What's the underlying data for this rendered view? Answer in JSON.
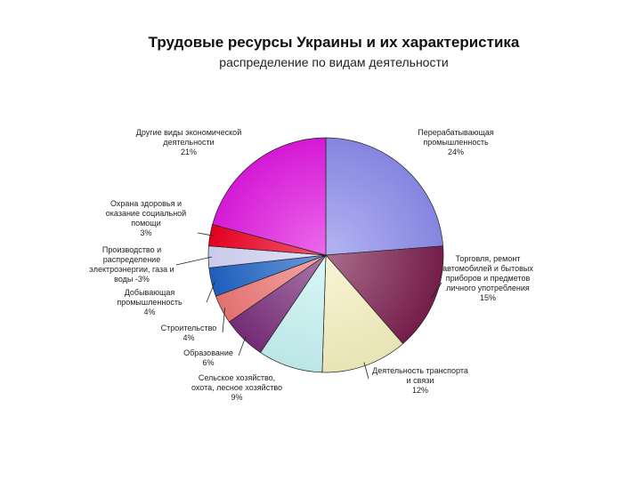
{
  "page": {
    "title": "Трудовые ресурсы Украины и их характеристика",
    "subtitle": "распределение по видам деятельности"
  },
  "chart_data": {
    "type": "pie",
    "title": "Трудовые ресурсы Украины и их характеристика",
    "subtitle": "распределение по видам деятельности",
    "unit": "%",
    "slices": [
      {
        "label": "Перерабатывающая промышленность",
        "value": 24,
        "value_label": "24%",
        "color": "#8c8cec",
        "lines": [
          "Перерабатывающая",
          "промышленность",
          "24%"
        ]
      },
      {
        "label": "Торговля, ремонт автомобилей и бытовых приборов и предметов личного употребления",
        "value": 15,
        "value_label": "15%",
        "color": "#7a1e4e",
        "lines": [
          "Торговля, ремонт",
          "автомобилей и бытовых",
          "приборов и предметов",
          "личного употребления",
          "15%"
        ]
      },
      {
        "label": "Деятельность транспорта и связи",
        "value": 12,
        "value_label": "12%",
        "color": "#f4f0be",
        "lines": [
          "Деятельность транспорта",
          "и связи",
          "12%"
        ]
      },
      {
        "label": "Сельское хозяйство, охота, лесное хозяйство",
        "value": 9,
        "value_label": "9%",
        "color": "#c6f2f2",
        "lines": [
          "Сельское хозяйство,",
          "охота, лесное хозяйство",
          "9%"
        ]
      },
      {
        "label": "Образование",
        "value": 6,
        "value_label": "6%",
        "color": "#7a2e7a",
        "lines": [
          "Образование",
          "6%"
        ]
      },
      {
        "label": "Строительство",
        "value": 4,
        "value_label": "4%",
        "color": "#ee7777",
        "lines": [
          "Строительство",
          "4%"
        ]
      },
      {
        "label": "Добывающая промышленность",
        "value": 4,
        "value_label": "4%",
        "color": "#1f63c6",
        "lines": [
          "Добывающая",
          "промышленность",
          "4%"
        ]
      },
      {
        "label": "Производство и распределение электроэнергии, газа и воды",
        "value": 3,
        "value_label": "3%",
        "color": "#d4d4f6",
        "lines": [
          "Производство и",
          "распределение",
          "электроэнергии, газа и",
          "воды -3%"
        ]
      },
      {
        "label": "Охрана здоровья и оказание социальной помощи",
        "value": 3,
        "value_label": "3%",
        "color": "#ee0022",
        "lines": [
          "Охрана здоровья и",
          "оказание социальной",
          "помощи",
          "3%"
        ]
      },
      {
        "label": "Другие виды экономической деятельности",
        "value": 21,
        "value_label": "21%",
        "color": "#e01ae0",
        "lines": [
          "Другие виды экономической",
          "деятельности",
          "21%"
        ]
      }
    ]
  }
}
